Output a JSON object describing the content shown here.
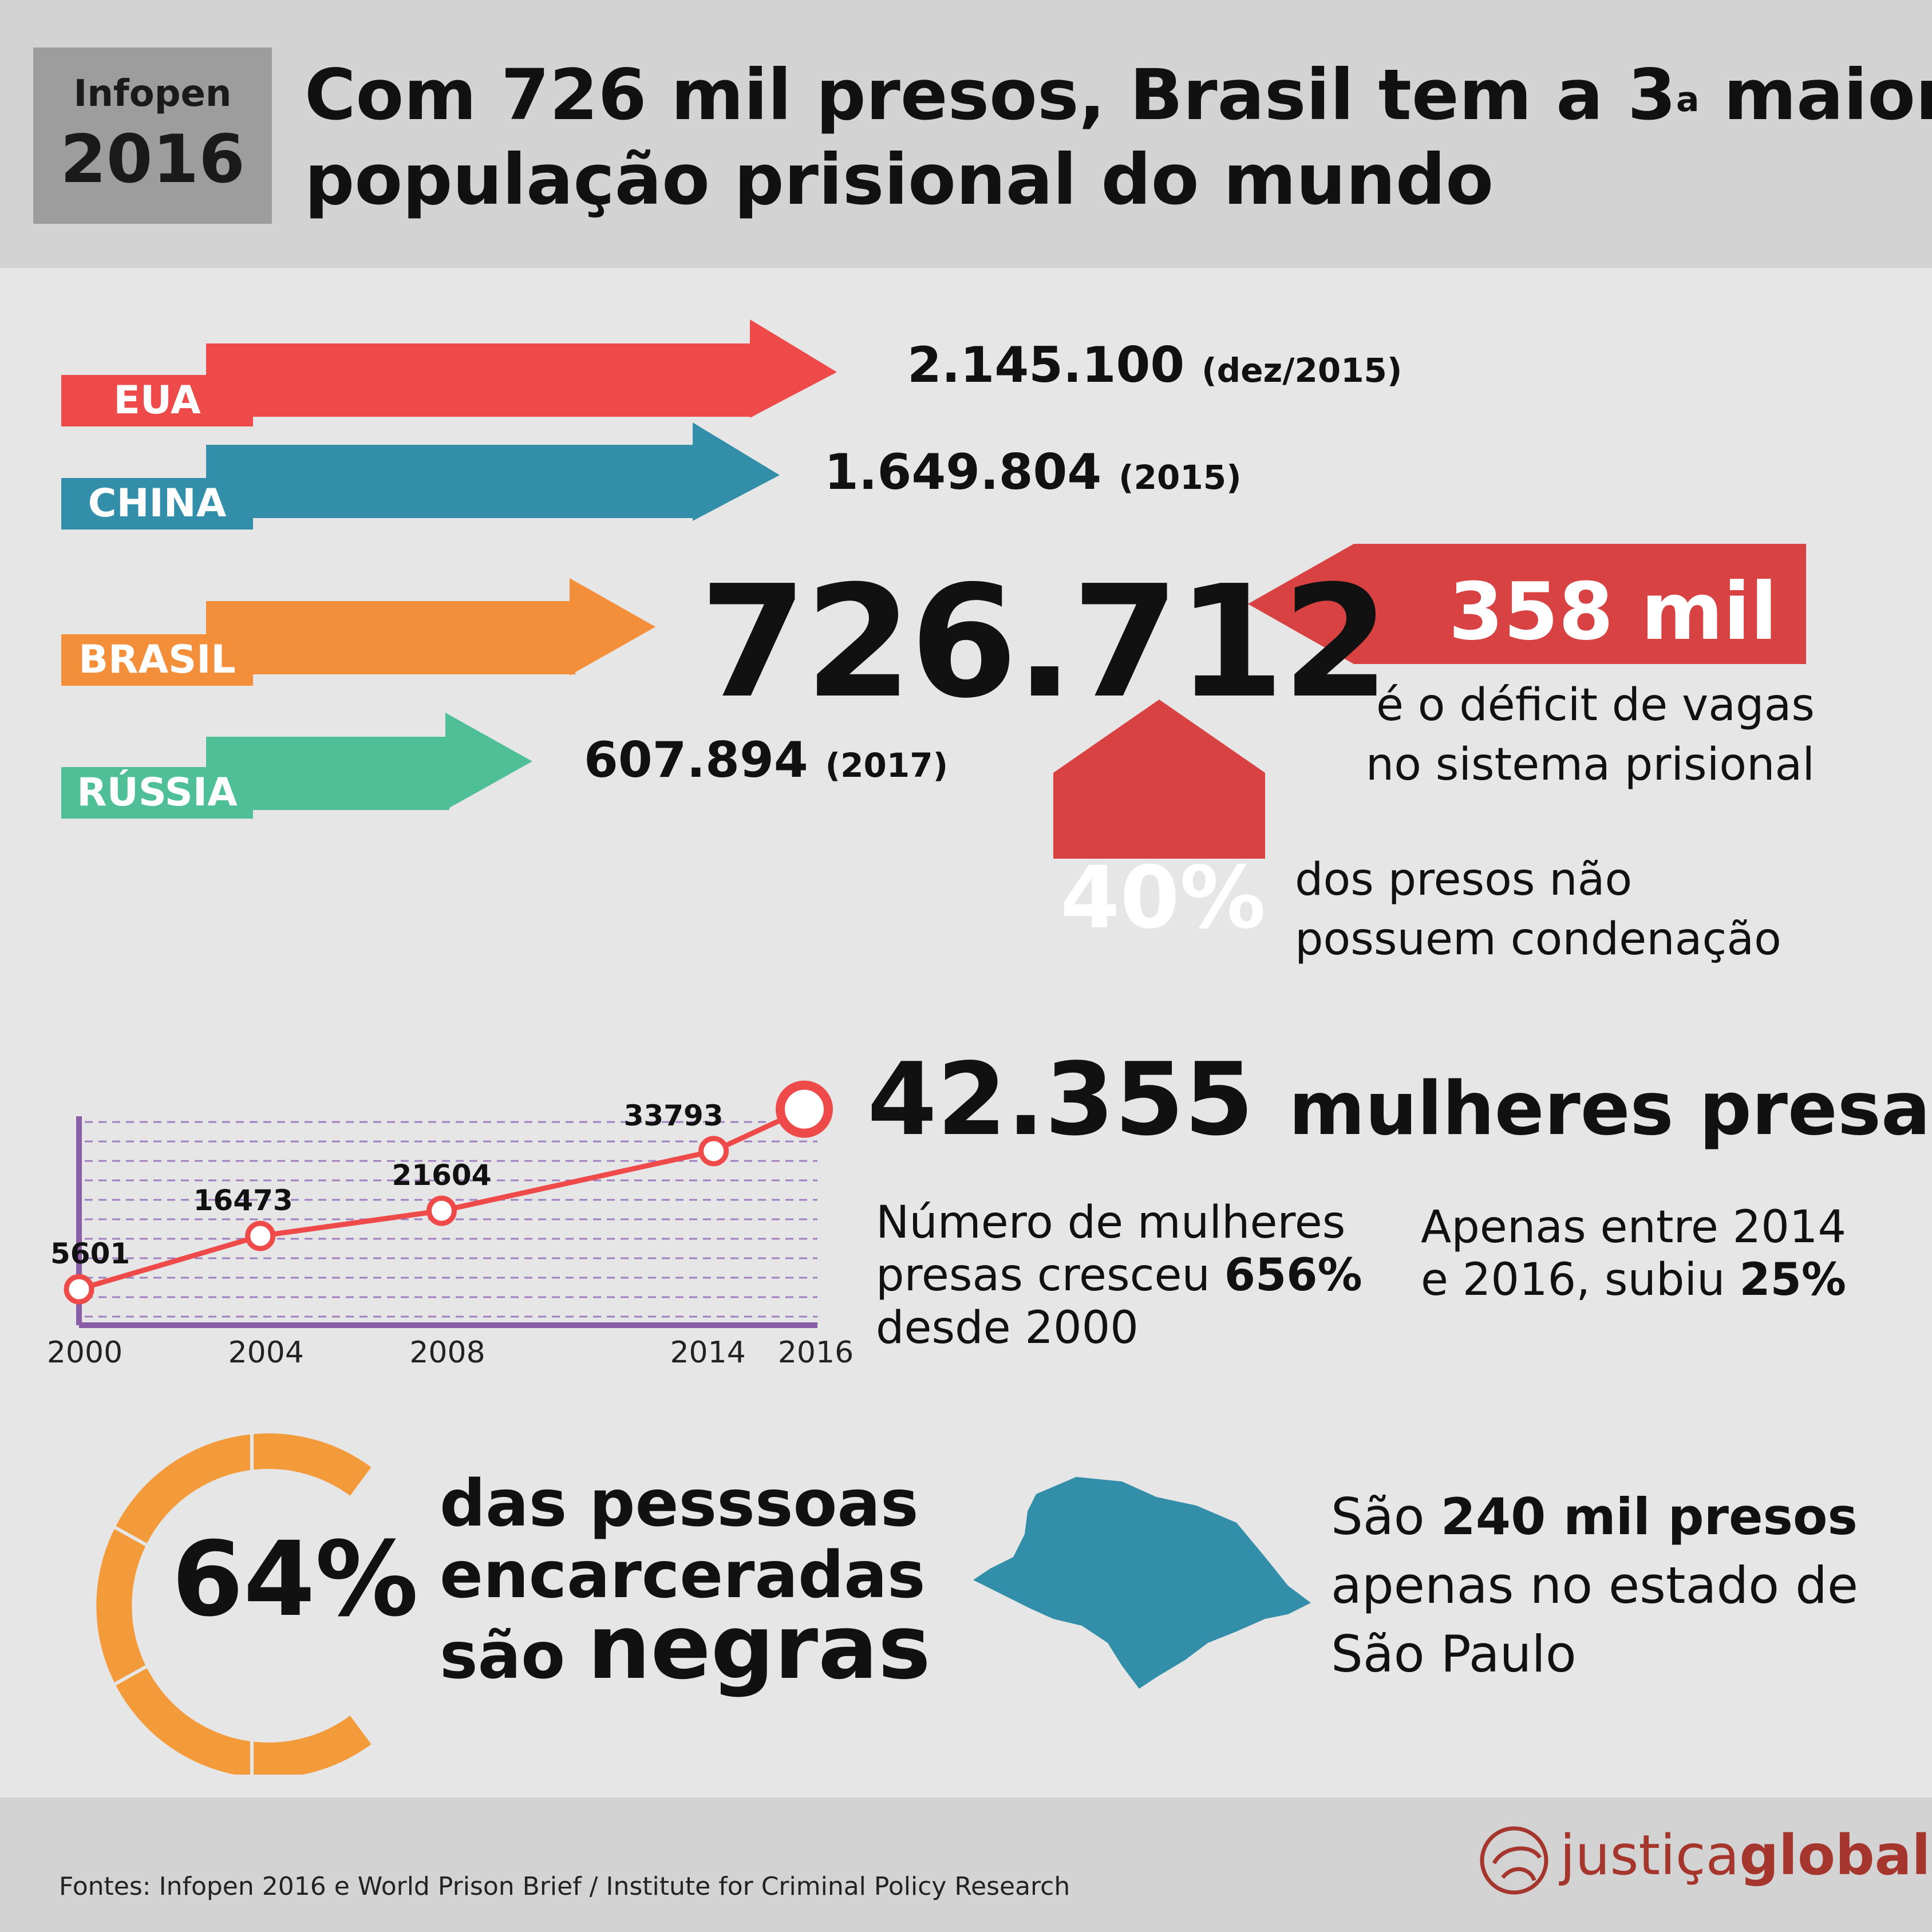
{
  "header": {
    "badge_top": "Infopen",
    "badge_year": "2016",
    "title_line1": "Com 726 mil presos, Brasil tem a 3",
    "title_sup": "a",
    "title_line1_end": " maior",
    "title_line2": "população prisional do mundo"
  },
  "countries": [
    {
      "label": "EUA",
      "value": "2.145.100",
      "date": "(dez/2015)",
      "color": "#ef4a4a"
    },
    {
      "label": "CHINA",
      "value": "1.649.804",
      "date": "(2015)",
      "color": "#328ea9"
    },
    {
      "label": "BRASIL",
      "value": "726.712",
      "date": "",
      "color": "#f38f3a"
    },
    {
      "label": "RÚSSIA",
      "value": "607.894",
      "date": "(2017)",
      "color": "#4fbf98"
    }
  ],
  "deficit": {
    "value": "358 mil",
    "label_line1": "é o déficit de vagas",
    "label_line2": "no sistema prisional",
    "color": "#d84242"
  },
  "unconvicted": {
    "value": "40%",
    "label_line1": "dos presos não",
    "label_line2": "possuem condenação"
  },
  "women": {
    "number": "42.355",
    "label": "mulheres presas",
    "para1_a": "Número de mulheres",
    "para1_b": "presas cresceu ",
    "para1_pct": "656%",
    "para1_c": "desde 2000",
    "para2_a": "Apenas entre 2014",
    "para2_b": "e 2016, subiu ",
    "para2_pct": "25%"
  },
  "chart_data": {
    "type": "line",
    "x": [
      2000,
      2004,
      2008,
      2014,
      2016
    ],
    "values": [
      5601,
      16473,
      21604,
      33793,
      42355
    ],
    "point_labels": [
      "5601",
      "16473",
      "21604",
      "33793",
      ""
    ],
    "tick_labels": [
      "2000",
      "2004",
      "2008",
      "2014",
      "2016"
    ],
    "line_color": "#ef4a4a",
    "axis_color": "#8a5ea6"
  },
  "race": {
    "value": "64%",
    "line1": "das pesssoas",
    "line2": "encarceradas",
    "line3_a": "são ",
    "line3_b": "negras",
    "ring_color": "#f39a3a"
  },
  "sao_paulo": {
    "line1_a": "São ",
    "line1_b": "240 mil presos",
    "line2": "apenas no estado de",
    "line3": "São Paulo",
    "map_color": "#328ea9"
  },
  "footer": {
    "source": "Fontes: Infopen 2016 e World Prison Brief / Institute for Criminal Policy Research",
    "logo_a": "justiça",
    "logo_b": "global"
  }
}
